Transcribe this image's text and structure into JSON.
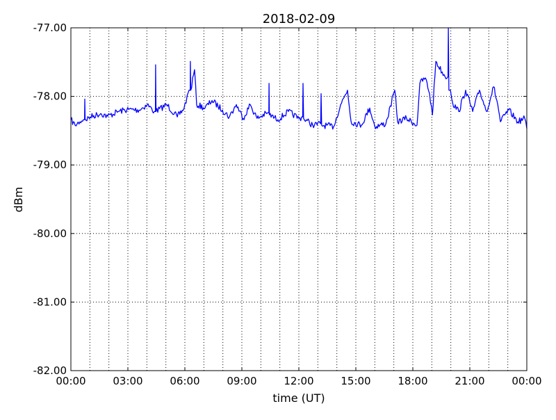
{
  "chart_data": {
    "type": "line",
    "title": "2018-02-09",
    "xlabel": "time (UT)",
    "ylabel": "dBm",
    "xlim": [
      0,
      24
    ],
    "ylim": [
      -82,
      -77
    ],
    "x_unit": "hours UT",
    "xticks": [
      0,
      3,
      6,
      9,
      12,
      15,
      18,
      21,
      24
    ],
    "xtick_labels": [
      "00:00",
      "03:00",
      "06:00",
      "09:00",
      "12:00",
      "15:00",
      "18:00",
      "21:00",
      "00:00"
    ],
    "yticks": [
      -77,
      -78,
      -79,
      -80,
      -81,
      -82
    ],
    "ytick_labels": [
      "-77.00",
      "-78.00",
      "-79.00",
      "-80.00",
      "-81.00",
      "-82.00"
    ],
    "grid": true,
    "grid_x_hours": [
      1,
      2,
      3,
      4,
      5,
      6,
      7,
      8,
      9,
      10,
      11,
      12,
      13,
      14,
      15,
      16,
      17,
      18,
      19,
      20,
      21,
      22,
      23
    ],
    "line_color": "#0000ff",
    "series": [
      {
        "x": [
          0.0,
          0.22,
          0.48,
          0.66,
          0.72,
          0.73,
          0.75,
          1.02,
          1.57,
          1.94,
          2.49,
          3.04,
          3.59,
          4.02,
          4.39,
          4.45,
          4.46,
          4.48,
          5.05,
          5.6,
          5.96,
          6.22,
          6.28,
          6.29,
          6.31,
          6.51,
          6.62,
          7.06,
          7.43,
          7.98,
          8.34,
          8.71,
          9.07,
          9.44,
          9.8,
          10.35,
          10.42,
          10.43,
          10.45,
          10.9,
          11.45,
          12.0,
          12.2,
          12.22,
          12.25,
          12.73,
          13.15,
          13.17,
          13.2,
          13.83,
          14.2,
          14.56,
          14.75,
          15.29,
          15.73,
          16.0,
          16.58,
          17.05,
          17.2,
          17.67,
          18.22,
          18.37,
          18.66,
          18.88,
          19.03,
          19.21,
          19.69,
          19.85,
          19.87,
          19.9,
          19.98,
          20.1,
          20.42,
          20.78,
          21.15,
          21.51,
          21.88,
          22.25,
          22.47,
          22.61,
          23.05,
          23.53,
          23.89,
          24.0
        ],
        "y": [
          -78.34,
          -78.42,
          -78.37,
          -78.34,
          -78.34,
          -78.04,
          -78.34,
          -78.3,
          -78.25,
          -78.29,
          -78.22,
          -78.19,
          -78.2,
          -78.12,
          -78.22,
          -78.22,
          -77.54,
          -78.22,
          -78.12,
          -78.3,
          -78.17,
          -77.91,
          -77.91,
          -77.49,
          -77.91,
          -77.61,
          -78.12,
          -78.17,
          -78.06,
          -78.2,
          -78.3,
          -78.12,
          -78.32,
          -78.12,
          -78.32,
          -78.24,
          -78.24,
          -77.81,
          -78.27,
          -78.34,
          -78.22,
          -78.32,
          -78.3,
          -77.81,
          -78.32,
          -78.42,
          -78.4,
          -77.96,
          -78.42,
          -78.44,
          -78.12,
          -77.91,
          -78.37,
          -78.42,
          -78.17,
          -78.44,
          -78.4,
          -77.91,
          -78.37,
          -78.32,
          -78.42,
          -77.81,
          -77.73,
          -77.96,
          -78.27,
          -77.49,
          -77.71,
          -77.71,
          -77.0,
          -77.91,
          -77.91,
          -78.1,
          -78.22,
          -77.91,
          -78.22,
          -77.91,
          -78.22,
          -77.86,
          -78.12,
          -78.37,
          -78.2,
          -78.37,
          -78.32,
          -78.47
        ]
      }
    ]
  }
}
